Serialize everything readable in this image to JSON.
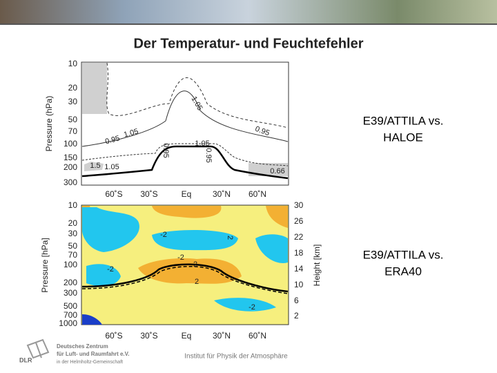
{
  "header": {
    "title": "Der Temperatur- und Feuchtefehler"
  },
  "panels": [
    {
      "caption": [
        "E39/ATTILA vs.",
        "HALOE"
      ],
      "y_label": "Pressure (hPa)",
      "y_ticks": [
        "10",
        "20",
        "30",
        "50",
        "70",
        "100",
        "150",
        "200",
        "300"
      ],
      "x_ticks": [
        "60˚S",
        "30˚S",
        "Eq",
        "30˚N",
        "60˚N"
      ],
      "contour_labels": [
        "1.05",
        "0.95",
        "0.95",
        "1.05",
        "0.95",
        "1.05",
        "0.95",
        "1.5",
        "1.05",
        "0.66"
      ]
    },
    {
      "caption": [
        "E39/ATTILA vs.",
        "ERA40"
      ],
      "y_label": "Pressure [hPa]",
      "y_ticks": [
        "10",
        "20",
        "30",
        "50",
        "70",
        "100",
        "200",
        "300",
        "500",
        "700",
        "1000"
      ],
      "y2_label": "Height [km]",
      "y2_ticks": [
        "30",
        "26",
        "22",
        "18",
        "14",
        "10",
        "6",
        "2"
      ],
      "x_ticks": [
        "60˚S",
        "30˚S",
        "Eq",
        "30˚N",
        "60˚N"
      ],
      "contour_labels": [
        "-2",
        "2",
        "-2",
        "2",
        "-2",
        "2",
        "-2"
      ]
    }
  ],
  "footer": {
    "logo_mark": "DLR",
    "logo_lines": [
      "Deutsches Zentrum",
      "für Luft- und Raumfahrt e.V.",
      "in der Helmholtz-Gemeinschaft"
    ],
    "institute": "Institut für Physik der Atmosphäre"
  }
}
